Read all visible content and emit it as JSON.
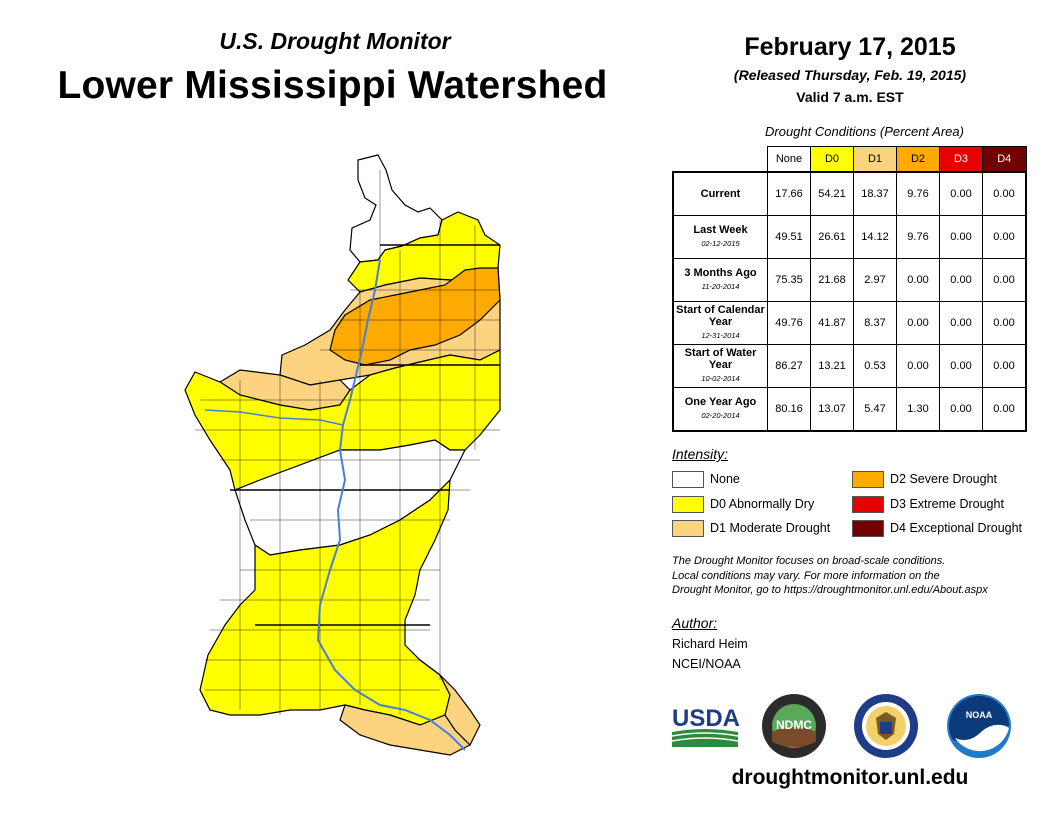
{
  "header": {
    "subtitle": "U.S. Drought Monitor",
    "title": "Lower Mississippi Watershed",
    "date": "February 17, 2015",
    "released": "(Released Thursday, Feb. 19, 2015)",
    "valid": "Valid 7 a.m. EST"
  },
  "table": {
    "caption": "Drought Conditions (Percent Area)",
    "columns": [
      {
        "label": "None",
        "color": "#ffffff",
        "text_color": "#000000"
      },
      {
        "label": "D0",
        "color": "#ffff00",
        "text_color": "#000000"
      },
      {
        "label": "D1",
        "color": "#fcd37f",
        "text_color": "#000000"
      },
      {
        "label": "D2",
        "color": "#ffaa00",
        "text_color": "#000000"
      },
      {
        "label": "D3",
        "color": "#e60000",
        "text_color": "#ffffff"
      },
      {
        "label": "D4",
        "color": "#730000",
        "text_color": "#ffffff"
      }
    ],
    "rows": [
      {
        "label": "Current",
        "date": "",
        "values": [
          "17.66",
          "54.21",
          "18.37",
          "9.76",
          "0.00",
          "0.00"
        ]
      },
      {
        "label": "Last Week",
        "date": "02-12-2015",
        "values": [
          "49.51",
          "26.61",
          "14.12",
          "9.76",
          "0.00",
          "0.00"
        ]
      },
      {
        "label": "3 Months Ago",
        "date": "11-20-2014",
        "values": [
          "75.35",
          "21.68",
          "2.97",
          "0.00",
          "0.00",
          "0.00"
        ]
      },
      {
        "label": "Start of Calendar Year",
        "date": "12-31-2014",
        "values": [
          "49.76",
          "41.87",
          "8.37",
          "0.00",
          "0.00",
          "0.00"
        ]
      },
      {
        "label": "Start of Water Year",
        "date": "10-02-2014",
        "values": [
          "86.27",
          "13.21",
          "0.53",
          "0.00",
          "0.00",
          "0.00"
        ]
      },
      {
        "label": "One Year Ago",
        "date": "02-20-2014",
        "values": [
          "80.16",
          "13.07",
          "5.47",
          "1.30",
          "0.00",
          "0.00"
        ]
      }
    ]
  },
  "legend": {
    "title": "Intensity:",
    "items": [
      {
        "label": "None",
        "color": "#ffffff"
      },
      {
        "label": "D0 Abnormally Dry",
        "color": "#ffff00"
      },
      {
        "label": "D1 Moderate Drought",
        "color": "#fcd37f"
      },
      {
        "label": "D2 Severe Drought",
        "color": "#ffaa00"
      },
      {
        "label": "D3 Extreme Drought",
        "color": "#e60000"
      },
      {
        "label": "D4 Exceptional Drought",
        "color": "#730000"
      }
    ]
  },
  "note": {
    "line1": "The Drought Monitor focuses on broad-scale conditions.",
    "line2": "Local conditions may vary. For more information on the",
    "line3": "Drought Monitor, go to https://droughtmonitor.unl.edu/About.aspx"
  },
  "author": {
    "label": "Author:",
    "name": "Richard Heim",
    "org": "NCEI/NOAA"
  },
  "logos": {
    "usda": "USDA",
    "ndmc": "NDMC",
    "noaa": "NOAA"
  },
  "footer": {
    "site": "droughtmonitor.unl.edu"
  },
  "map": {
    "colors": {
      "none": "#ffffff",
      "d0": "#ffff00",
      "d1": "#fcd37f",
      "d2": "#ffaa00",
      "water": "#4a7fd6"
    }
  }
}
